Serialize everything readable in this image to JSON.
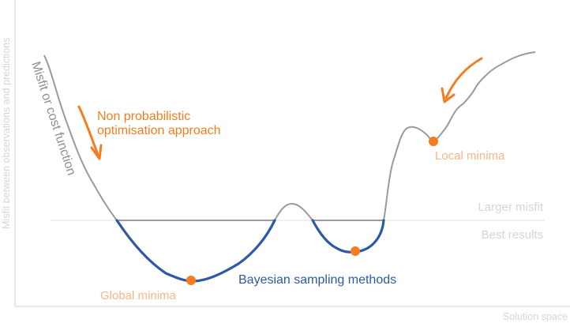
{
  "axes": {
    "y_label": "Misfit between observations and predictions",
    "x_label": "Solution space"
  },
  "labels": {
    "curve": "Misfit or cost function",
    "approach_line1": "Non probabilistic",
    "approach_line2": "optimisation approach",
    "local_minima": "Local minima",
    "global_minima": "Global minima",
    "bayesian": "Bayesian sampling methods",
    "larger_misfit": "Larger misfit",
    "best_results": "Best results"
  },
  "colors": {
    "curve_gray": "#9a9a9a",
    "bayes_blue": "#2f58a6",
    "accent_orange": "#f57c1f",
    "minima_label": "#f8b58a",
    "faint_text": "#d6d6d6",
    "axis": "#cfcfcf"
  }
}
